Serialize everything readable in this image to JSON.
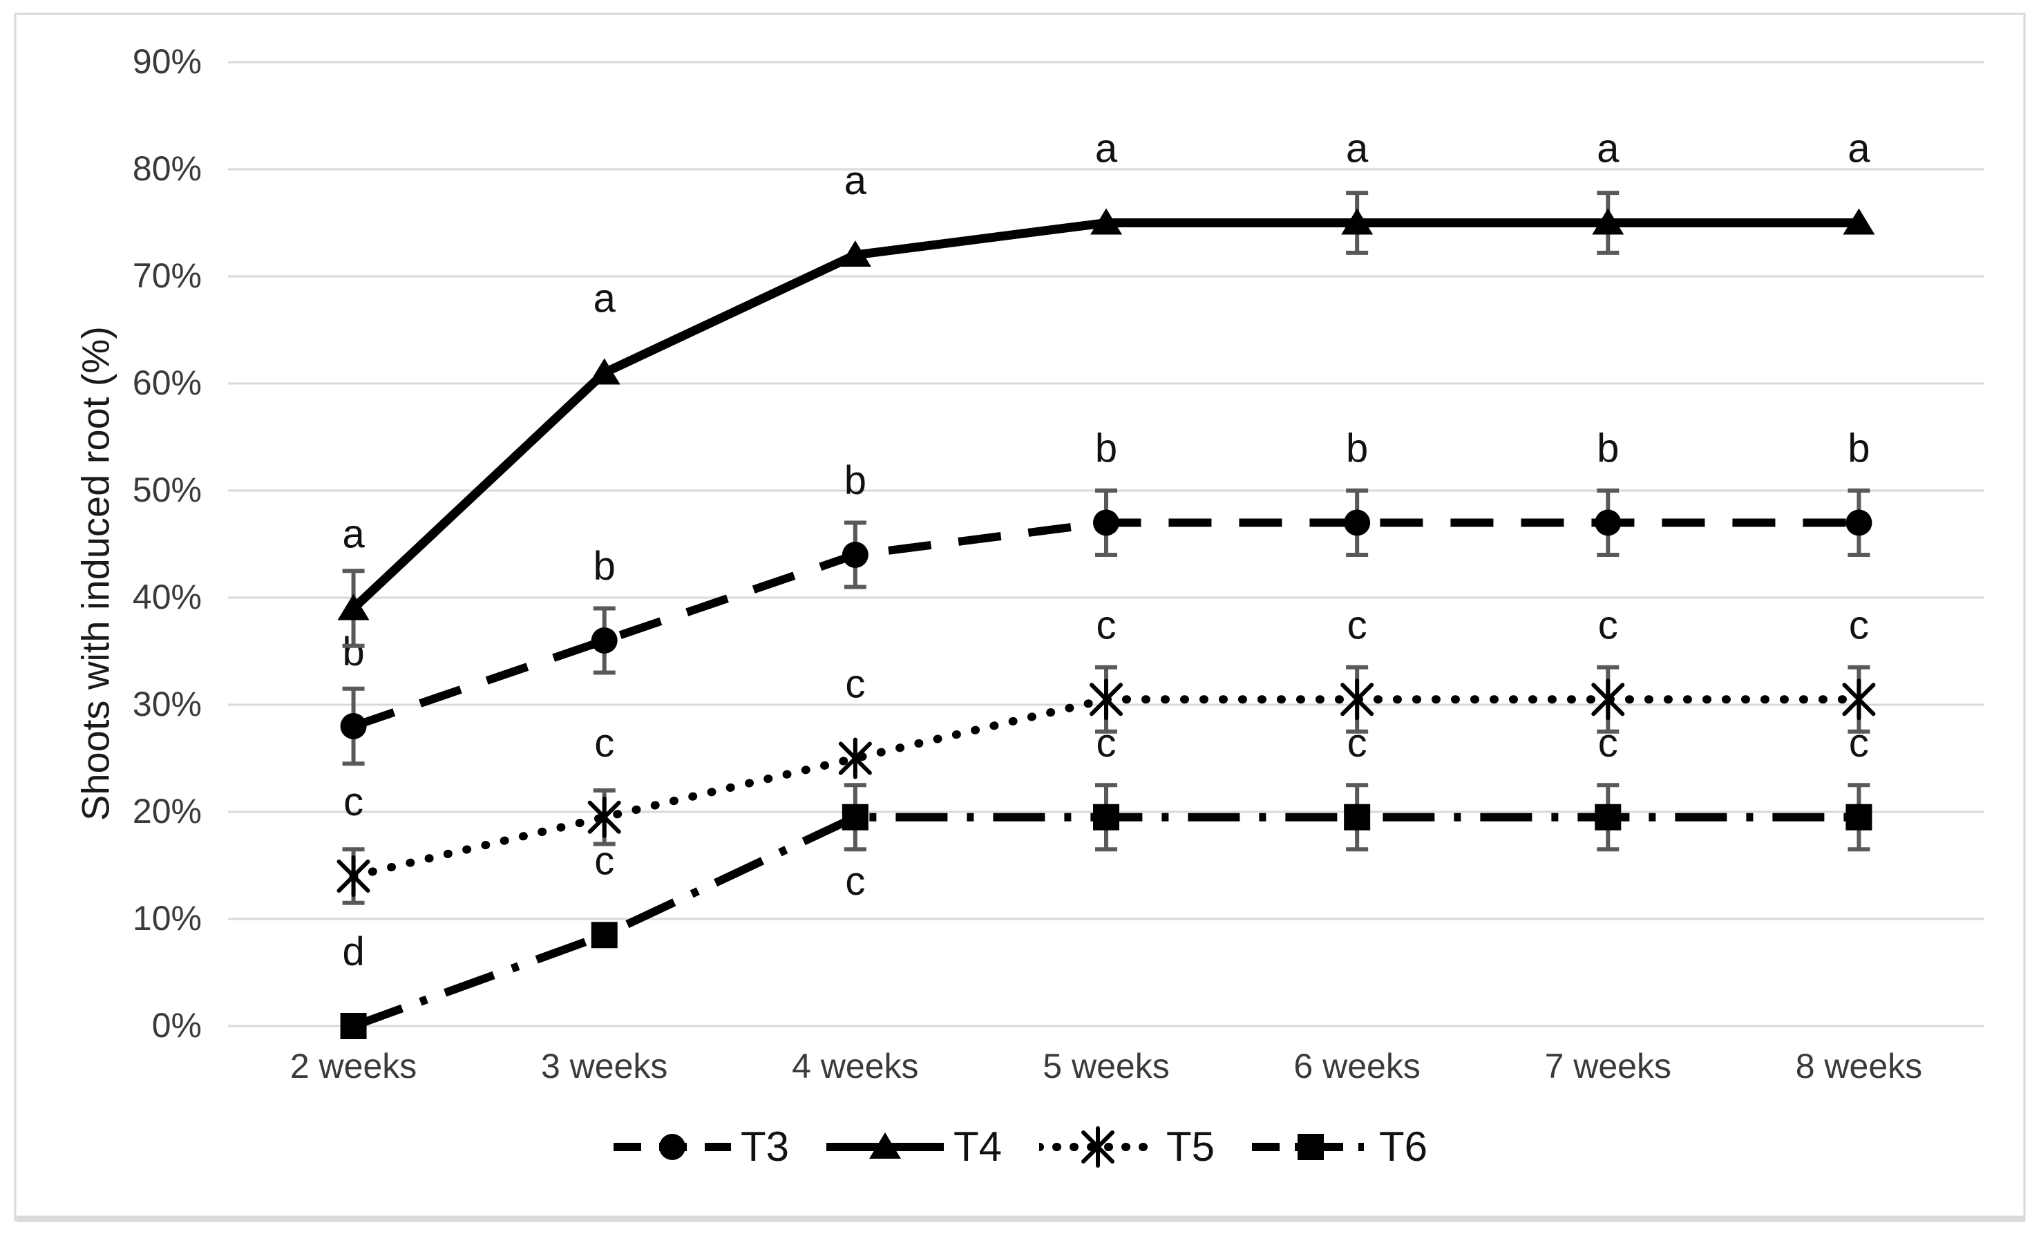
{
  "figure": {
    "background": "#ffffff",
    "frame_color": "#d9d9d9"
  },
  "chart_data": {
    "type": "line",
    "title": "",
    "xlabel": "",
    "ylabel": "Shoots with induced root (%)",
    "categories": [
      "2 weeks",
      "3 weeks",
      "4 weeks",
      "5 weeks",
      "6 weeks",
      "7 weeks",
      "8 weeks"
    ],
    "y_ticks": [
      "0%",
      "10%",
      "20%",
      "30%",
      "40%",
      "50%",
      "60%",
      "70%",
      "80%",
      "90%"
    ],
    "ylim": [
      0,
      90
    ],
    "grid": "horizontal",
    "legend_position": "bottom",
    "gridline_color": "#d9d9d9",
    "error_bar_color": "#595959",
    "tick_color": "#3a3a3a",
    "series": [
      {
        "name": "T3",
        "marker": "circle",
        "line_style": "dashed",
        "color": "#000000",
        "values": [
          28,
          36,
          44,
          47,
          47,
          47,
          47
        ],
        "error": [
          3.5,
          3,
          3,
          3,
          3,
          3,
          3
        ],
        "labels": [
          "b",
          "b",
          "b",
          "b",
          "b",
          "b",
          "b"
        ],
        "label_side": [
          "above",
          "above",
          "above",
          "above",
          "above",
          "above",
          "above"
        ]
      },
      {
        "name": "T4",
        "marker": "triangle",
        "line_style": "solid",
        "color": "#000000",
        "values": [
          39,
          61,
          72,
          75,
          75,
          75,
          75
        ],
        "error": [
          3.5,
          0,
          0,
          0,
          2.8,
          2.8,
          0
        ],
        "labels": [
          "a",
          "a",
          "a",
          "a",
          "a",
          "a",
          "a"
        ],
        "label_side": [
          "above",
          "above",
          "above",
          "above",
          "above",
          "above",
          "above"
        ]
      },
      {
        "name": "T5",
        "marker": "asterisk",
        "line_style": "dotted",
        "color": "#000000",
        "values": [
          14,
          19.5,
          25,
          30.5,
          30.5,
          30.5,
          30.5
        ],
        "error": [
          2.5,
          2.5,
          0,
          3,
          3,
          3,
          3
        ],
        "labels": [
          "c",
          "c",
          "c",
          "c",
          "c",
          "c",
          "c"
        ],
        "label_side": [
          "above",
          "above",
          "above",
          "above",
          "above",
          "above",
          "above"
        ]
      },
      {
        "name": "T6",
        "marker": "square",
        "line_style": "dashdot",
        "color": "#000000",
        "values": [
          0,
          8.5,
          19.5,
          19.5,
          19.5,
          19.5,
          19.5
        ],
        "error": [
          0,
          0,
          3,
          3,
          3,
          3,
          3
        ],
        "labels": [
          "d",
          "c",
          "c",
          "c",
          "c",
          "c",
          "c"
        ],
        "label_side": [
          "above",
          "above",
          "below",
          "above",
          "above",
          "above",
          "above"
        ]
      }
    ]
  }
}
